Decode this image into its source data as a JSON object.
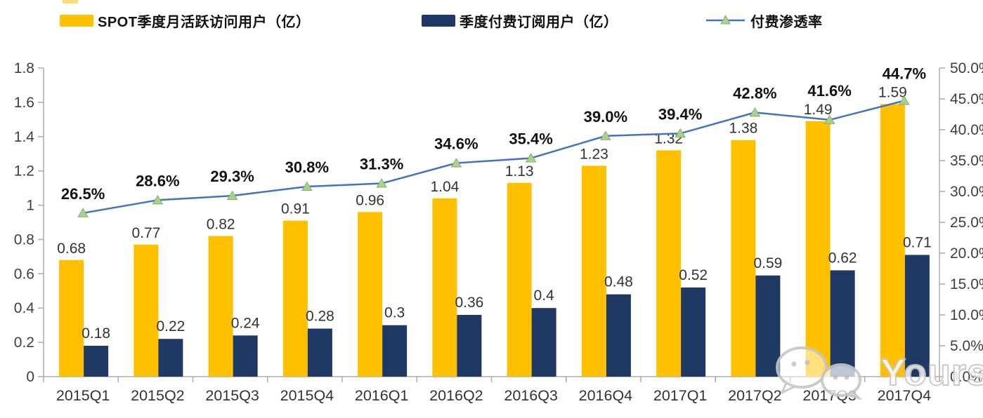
{
  "chart_data": {
    "type": "bar-line-combo",
    "title": "",
    "categories": [
      "2015Q1",
      "2015Q2",
      "2015Q3",
      "2015Q4",
      "2016Q1",
      "2016Q2",
      "2016Q3",
      "2016Q4",
      "2017Q1",
      "2017Q2",
      "2017Q3",
      "2017Q4"
    ],
    "series": [
      {
        "name": "SPOT季度月活跃访问用户（亿）",
        "type": "bar",
        "axis": "left",
        "color": "#FFC000",
        "values": [
          0.68,
          0.77,
          0.82,
          0.91,
          0.96,
          1.04,
          1.13,
          1.23,
          1.32,
          1.38,
          1.49,
          1.59
        ],
        "labels": [
          "0.68",
          "0.77",
          "0.82",
          "0.91",
          "0.96",
          "1.04",
          "1.13",
          "1.23",
          "1.32",
          "1.38",
          "1.49",
          "1.59"
        ]
      },
      {
        "name": "季度付费订阅用户（亿）",
        "type": "bar",
        "axis": "left",
        "color": "#1F3864",
        "values": [
          0.18,
          0.22,
          0.24,
          0.28,
          0.3,
          0.36,
          0.4,
          0.48,
          0.52,
          0.59,
          0.62,
          0.71
        ],
        "labels": [
          "0.18",
          "0.22",
          "0.24",
          "0.28",
          "0.3",
          "0.36",
          "0.4",
          "0.48",
          "0.52",
          "0.59",
          "0.62",
          "0.71"
        ]
      },
      {
        "name": "付费渗透率",
        "type": "line",
        "axis": "right",
        "color": "#4472C4",
        "marker": "triangle",
        "marker_color": "#A9D18E",
        "marker_stroke": "#8AAE6B",
        "values": [
          26.5,
          28.6,
          29.3,
          30.8,
          31.3,
          34.6,
          35.4,
          39.0,
          39.4,
          42.8,
          41.6,
          44.7
        ],
        "labels": [
          "26.5%",
          "28.6%",
          "29.3%",
          "30.8%",
          "31.3%",
          "34.6%",
          "35.4%",
          "39.0%",
          "39.4%",
          "42.8%",
          "41.6%",
          "44.7%"
        ]
      }
    ],
    "left_axis": {
      "min": 0,
      "max": 1.8,
      "ticks": [
        "1.8",
        "1.6",
        "1.4",
        "1.2",
        "1",
        "0.8",
        "0.6",
        "0.4",
        "0.2",
        "0"
      ]
    },
    "right_axis": {
      "min": 0,
      "max": 50,
      "ticks": [
        "50.0%",
        "45.0%",
        "40.0%",
        "35.0%",
        "30.0%",
        "25.0%",
        "20.0%",
        "15.0%",
        "10.0%",
        "5.0%",
        "0.0%"
      ]
    },
    "grid": false,
    "legend_position": "top",
    "colors": {
      "axis_line": "#ABABAB",
      "tick_label": "#3F3F3F",
      "bar_label": "#333333",
      "percent_label": "#111111"
    }
  },
  "watermark": {
    "text": "Yourseeker",
    "icon": "wechat-icon"
  }
}
